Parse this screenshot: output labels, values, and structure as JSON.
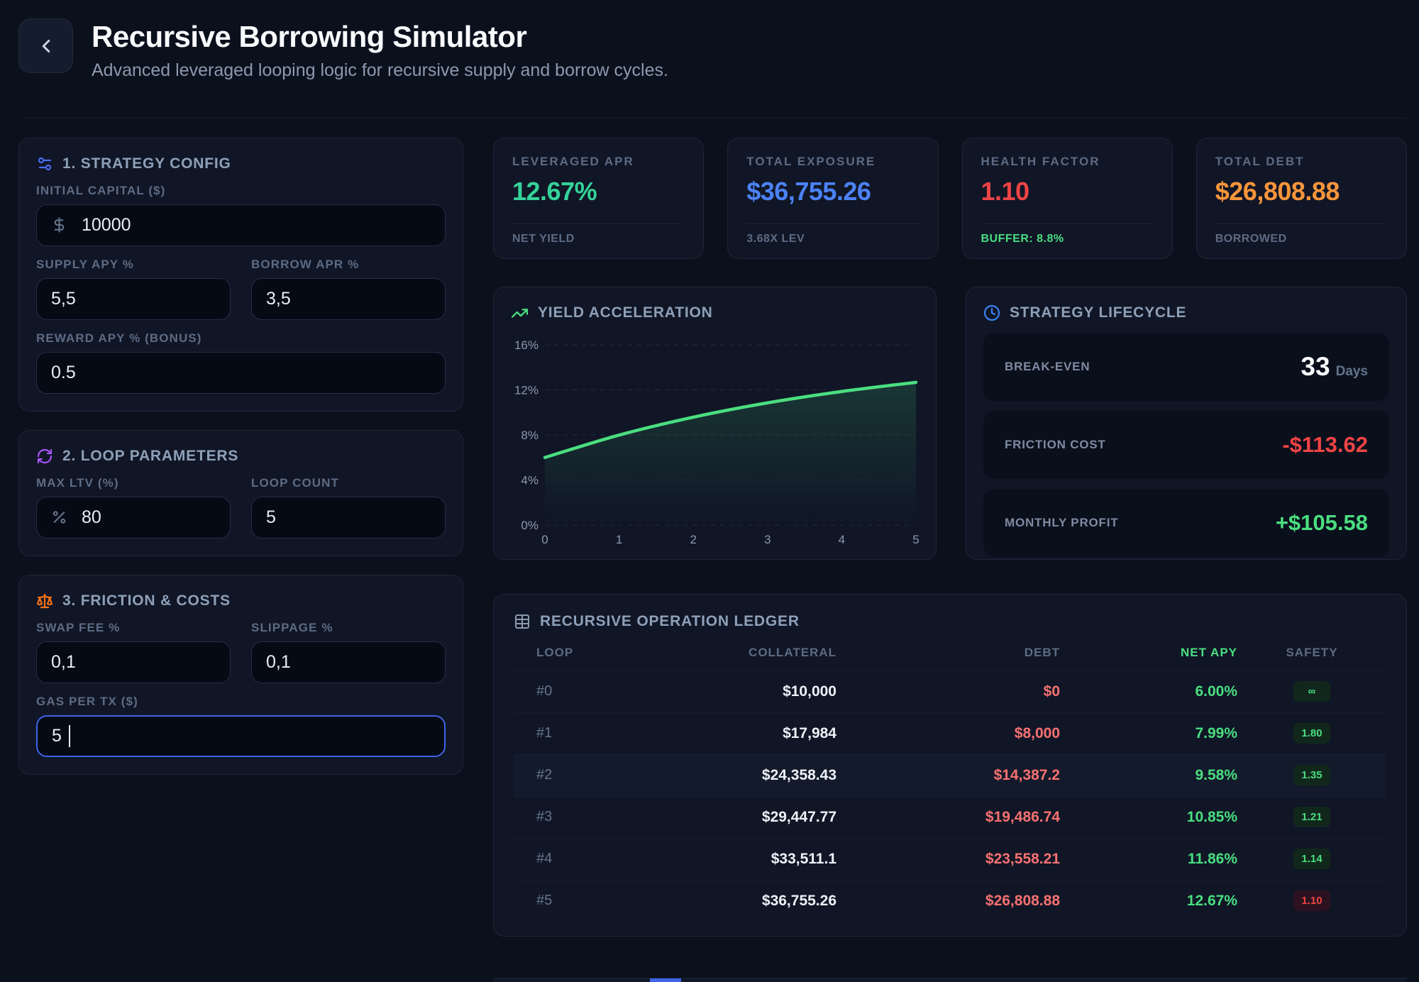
{
  "header": {
    "title": "Recursive Borrowing Simulator",
    "subtitle": "Advanced leveraged looping logic for recursive supply and borrow cycles."
  },
  "strategy_config": {
    "title": "1. STRATEGY CONFIG",
    "initial_capital": {
      "label": "INITIAL CAPITAL ($)",
      "value": "10000"
    },
    "supply_apy": {
      "label": "SUPPLY APY %",
      "value": "5,5"
    },
    "borrow_apr": {
      "label": "BORROW APR %",
      "value": "3,5"
    },
    "reward_apy": {
      "label": "REWARD APY % (BONUS)",
      "value": "0.5"
    }
  },
  "loop_parameters": {
    "title": "2. LOOP PARAMETERS",
    "max_ltv": {
      "label": "MAX LTV (%)",
      "value": "80"
    },
    "loop_count": {
      "label": "LOOP COUNT",
      "value": "5"
    }
  },
  "friction_costs": {
    "title": "3. FRICTION & COSTS",
    "swap_fee": {
      "label": "SWAP FEE %",
      "value": "0,1"
    },
    "slippage": {
      "label": "SLIPPAGE %",
      "value": "0,1"
    },
    "gas_per_tx": {
      "label": "GAS PER TX ($)",
      "value": "5",
      "focused": true
    }
  },
  "stats": [
    {
      "label": "LEVERAGED APR",
      "value": "12.67%",
      "sub": "NET YIELD"
    },
    {
      "label": "TOTAL EXPOSURE",
      "value": "$36,755.26",
      "sub": "3.68X LEV"
    },
    {
      "label": "HEALTH FACTOR",
      "value": "1.10",
      "sub": "BUFFER: 8.8%"
    },
    {
      "label": "TOTAL DEBT",
      "value": "$26,808.88",
      "sub": "BORROWED"
    }
  ],
  "chart_data": {
    "type": "area",
    "title": "YIELD ACCELERATION",
    "x": [
      0,
      1,
      2,
      3,
      4,
      5
    ],
    "values": [
      6.0,
      7.99,
      9.58,
      10.85,
      11.86,
      12.67
    ],
    "x_ticks": [
      "0",
      "1",
      "2",
      "3",
      "4",
      "5"
    ],
    "y_ticks": [
      "0%",
      "4%",
      "8%",
      "12%",
      "16%"
    ],
    "ylim": [
      0,
      16
    ],
    "xlabel": "",
    "ylabel": "",
    "grid": "dashed horizontal",
    "legend": "none",
    "line_color": "#4ade80"
  },
  "lifecycle": {
    "title": "STRATEGY LIFECYCLE",
    "rows": [
      {
        "label": "BREAK-EVEN",
        "value": "33",
        "unit": "Days"
      },
      {
        "label": "FRICTION COST",
        "value": "-$113.62"
      },
      {
        "label": "MONTHLY PROFIT",
        "value": "+$105.58"
      }
    ]
  },
  "ledger": {
    "title": "RECURSIVE OPERATION LEDGER",
    "columns": [
      "LOOP",
      "COLLATERAL",
      "DEBT",
      "NET APY",
      "SAFETY"
    ],
    "highlighted_row_index": 2,
    "rows": [
      {
        "loop": "#0",
        "collateral": "$10,000",
        "debt": "$0",
        "net_apy": "6.00%",
        "safety": "∞",
        "safety_state": "safe"
      },
      {
        "loop": "#1",
        "collateral": "$17,984",
        "debt": "$8,000",
        "net_apy": "7.99%",
        "safety": "1.80",
        "safety_state": "safe"
      },
      {
        "loop": "#2",
        "collateral": "$24,358.43",
        "debt": "$14,387.2",
        "net_apy": "9.58%",
        "safety": "1.35",
        "safety_state": "safe"
      },
      {
        "loop": "#3",
        "collateral": "$29,447.77",
        "debt": "$19,486.74",
        "net_apy": "10.85%",
        "safety": "1.21",
        "safety_state": "safe"
      },
      {
        "loop": "#4",
        "collateral": "$33,511.1",
        "debt": "$23,558.21",
        "net_apy": "11.86%",
        "safety": "1.14",
        "safety_state": "safe"
      },
      {
        "loop": "#5",
        "collateral": "$36,755.26",
        "debt": "$26,808.88",
        "net_apy": "12.67%",
        "safety": "1.10",
        "safety_state": "danger"
      }
    ]
  },
  "colors": {
    "page_bg": "#0b101d",
    "card_bg": "#101626",
    "accent_green": "#4ade80",
    "stat_green": "#34d399",
    "accent_blue": "#4d82f5",
    "accent_red": "#ef4444",
    "accent_orange": "#f7953b",
    "accent_purple": "#a855f7",
    "icon_blue": "#4b6df3",
    "focus_border": "#3e63e8",
    "label_gray": "#5d6b83"
  }
}
